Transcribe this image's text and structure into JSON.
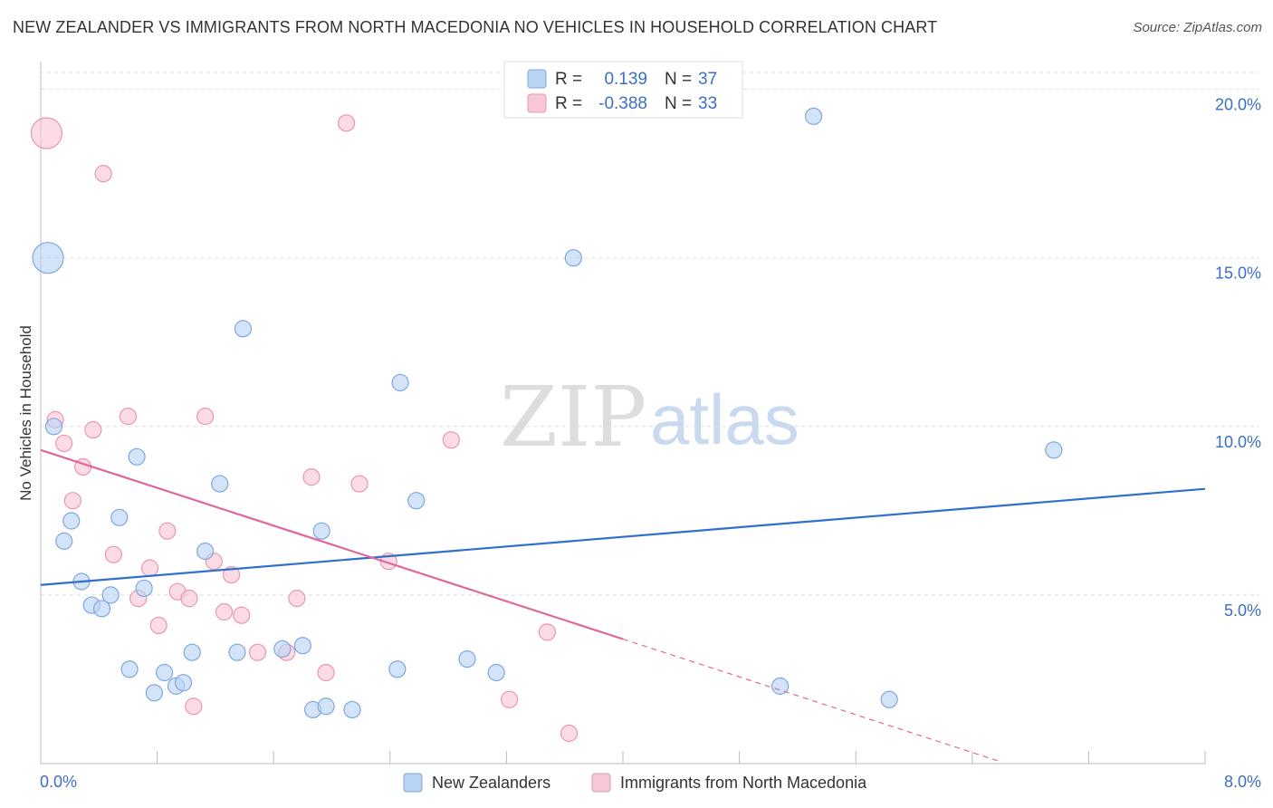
{
  "title": "NEW ZEALANDER VS IMMIGRANTS FROM NORTH MACEDONIA NO VEHICLES IN HOUSEHOLD CORRELATION CHART",
  "source": "Source: ZipAtlas.com",
  "watermark": {
    "zip": "ZIP",
    "atlas": "atlas"
  },
  "legend_top": [
    {
      "r_label": "R =",
      "r_value": "0.139",
      "n_label": "N =",
      "n_value": "37"
    },
    {
      "r_label": "R =",
      "r_value": "-0.388",
      "n_label": "N =",
      "n_value": "33"
    }
  ],
  "legend_bottom": [
    "New Zealanders",
    "Immigrants from North Macedonia"
  ],
  "colors": {
    "blue_fill": "#b9d3f3",
    "blue_stroke": "#7ea7de",
    "blue_line": "#2f6fce",
    "pink_fill": "#f8c7d6",
    "pink_stroke": "#eb95b0",
    "pink_line": "#e0679a",
    "grid": "#dddddd",
    "axis_text": "#3b6fc9"
  },
  "chart_data": {
    "type": "scatter",
    "title": "NEW ZEALANDER VS IMMIGRANTS FROM NORTH MACEDONIA NO VEHICLES IN HOUSEHOLD CORRELATION CHART",
    "xlabel": "",
    "ylabel": "No Vehicles in Household",
    "xlim": [
      0,
      8
    ],
    "ylim": [
      0,
      20.5
    ],
    "x_tick_labels": [
      "0.0%",
      "8.0%"
    ],
    "y_ticks": [
      5,
      10,
      15,
      20
    ],
    "y_tick_labels": [
      "5.0%",
      "10.0%",
      "15.0%",
      "20.0%"
    ],
    "grid": true,
    "legend_placement": "top-center",
    "series": [
      {
        "name": "New Zealanders",
        "r": 0.139,
        "n": 37,
        "trend": {
          "x": [
            0,
            8
          ],
          "y": [
            5.3,
            8.15
          ],
          "dashed_from": null
        },
        "points": [
          {
            "x": 0.05,
            "y": 15.0,
            "big": true
          },
          {
            "x": 0.09,
            "y": 10.0
          },
          {
            "x": 0.16,
            "y": 6.6
          },
          {
            "x": 0.21,
            "y": 7.2
          },
          {
            "x": 0.28,
            "y": 5.4
          },
          {
            "x": 0.35,
            "y": 4.7
          },
          {
            "x": 0.42,
            "y": 4.6
          },
          {
            "x": 0.48,
            "y": 5.0
          },
          {
            "x": 0.54,
            "y": 7.3
          },
          {
            "x": 0.61,
            "y": 2.8
          },
          {
            "x": 0.66,
            "y": 9.1
          },
          {
            "x": 0.71,
            "y": 5.2
          },
          {
            "x": 0.78,
            "y": 2.1
          },
          {
            "x": 0.85,
            "y": 2.7
          },
          {
            "x": 0.93,
            "y": 2.3
          },
          {
            "x": 0.98,
            "y": 2.4
          },
          {
            "x": 1.04,
            "y": 3.3
          },
          {
            "x": 1.13,
            "y": 6.3
          },
          {
            "x": 1.23,
            "y": 8.3
          },
          {
            "x": 1.35,
            "y": 3.3
          },
          {
            "x": 1.39,
            "y": 12.9
          },
          {
            "x": 1.66,
            "y": 3.4
          },
          {
            "x": 1.8,
            "y": 3.5
          },
          {
            "x": 1.87,
            "y": 1.6
          },
          {
            "x": 1.93,
            "y": 6.9
          },
          {
            "x": 1.96,
            "y": 1.7
          },
          {
            "x": 2.14,
            "y": 1.6
          },
          {
            "x": 2.45,
            "y": 2.8
          },
          {
            "x": 2.47,
            "y": 11.3
          },
          {
            "x": 2.58,
            "y": 7.8
          },
          {
            "x": 2.93,
            "y": 3.1
          },
          {
            "x": 3.13,
            "y": 2.7
          },
          {
            "x": 3.66,
            "y": 15.0
          },
          {
            "x": 5.08,
            "y": 2.3
          },
          {
            "x": 5.31,
            "y": 19.2
          },
          {
            "x": 5.83,
            "y": 1.9
          },
          {
            "x": 6.96,
            "y": 9.3
          }
        ]
      },
      {
        "name": "Immigrants from North Macedonia",
        "r": -0.388,
        "n": 33,
        "trend": {
          "x": [
            0,
            6.6
          ],
          "y": [
            9.3,
            0.05
          ],
          "dashed_from": 4.0
        },
        "points": [
          {
            "x": 0.04,
            "y": 18.7,
            "big": true
          },
          {
            "x": 0.1,
            "y": 10.2
          },
          {
            "x": 0.16,
            "y": 9.5
          },
          {
            "x": 0.22,
            "y": 7.8
          },
          {
            "x": 0.29,
            "y": 8.8
          },
          {
            "x": 0.36,
            "y": 9.9
          },
          {
            "x": 0.43,
            "y": 17.5
          },
          {
            "x": 0.5,
            "y": 6.2
          },
          {
            "x": 0.6,
            "y": 10.3
          },
          {
            "x": 0.67,
            "y": 4.9
          },
          {
            "x": 0.75,
            "y": 5.8
          },
          {
            "x": 0.81,
            "y": 4.1
          },
          {
            "x": 0.87,
            "y": 6.9
          },
          {
            "x": 0.94,
            "y": 5.1
          },
          {
            "x": 1.02,
            "y": 4.9
          },
          {
            "x": 1.05,
            "y": 1.7
          },
          {
            "x": 1.13,
            "y": 10.3
          },
          {
            "x": 1.19,
            "y": 6.0
          },
          {
            "x": 1.26,
            "y": 4.5
          },
          {
            "x": 1.31,
            "y": 5.6
          },
          {
            "x": 1.38,
            "y": 4.4
          },
          {
            "x": 1.49,
            "y": 3.3
          },
          {
            "x": 1.69,
            "y": 3.3
          },
          {
            "x": 1.76,
            "y": 4.9
          },
          {
            "x": 1.86,
            "y": 8.5
          },
          {
            "x": 1.96,
            "y": 2.7
          },
          {
            "x": 2.1,
            "y": 19.0
          },
          {
            "x": 2.19,
            "y": 8.3
          },
          {
            "x": 2.39,
            "y": 6.0
          },
          {
            "x": 2.82,
            "y": 9.6
          },
          {
            "x": 3.22,
            "y": 1.9
          },
          {
            "x": 3.48,
            "y": 3.9
          },
          {
            "x": 3.63,
            "y": 0.9
          }
        ]
      }
    ]
  }
}
